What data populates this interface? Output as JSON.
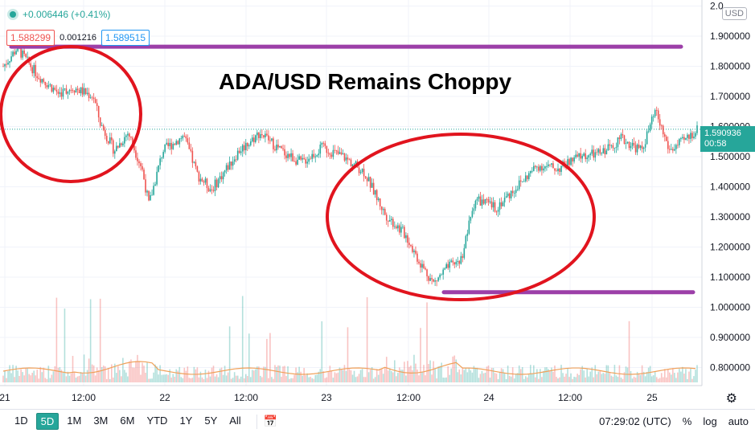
{
  "header": {
    "change": "+0.006446 (+0.41%)",
    "bid": "1.588299",
    "spread": "0.001216",
    "ask": "1.589515",
    "currency": "USD"
  },
  "title": "ADA/USD Remains Choppy",
  "last_price": {
    "value": "1.590936",
    "countdown": "00:58"
  },
  "toolbar": {
    "timeframes": [
      "1D",
      "5D",
      "1M",
      "3M",
      "6M",
      "YTD",
      "1Y",
      "5Y",
      "All"
    ],
    "active_timeframe": "5D",
    "time": "07:29:02 (UTC)",
    "percent": "%",
    "log": "log",
    "auto": "auto"
  },
  "colors": {
    "up": "#26a69a",
    "down": "#ef5350",
    "line": "#9c3fa8",
    "circle": "#e1141e",
    "volume_ma": "#f0a15a"
  },
  "chart_data": {
    "type": "candlestick",
    "title": "ADA/USD Remains Choppy",
    "y_axis": {
      "ticks": [
        "2.0",
        "1.900000",
        "1.800000",
        "1.700000",
        "1.600000",
        "1.500000",
        "1.400000",
        "1.300000",
        "1.200000",
        "1.100000",
        "1.000000",
        "0.900000",
        "0.800000"
      ],
      "range": [
        0.74,
        2.02
      ]
    },
    "x_axis": {
      "labels": [
        "21",
        "12:00",
        "22",
        "12:00",
        "23",
        "12:00",
        "24",
        "12:00",
        "25"
      ]
    },
    "price_path": [
      [
        0,
        1.8
      ],
      [
        0.02,
        1.86
      ],
      [
        0.05,
        1.77
      ],
      [
        0.08,
        1.71
      ],
      [
        0.1,
        1.73
      ],
      [
        0.13,
        1.7
      ],
      [
        0.14,
        1.61
      ],
      [
        0.16,
        1.52
      ],
      [
        0.18,
        1.58
      ],
      [
        0.2,
        1.46
      ],
      [
        0.21,
        1.34
      ],
      [
        0.23,
        1.52
      ],
      [
        0.26,
        1.57
      ],
      [
        0.28,
        1.44
      ],
      [
        0.3,
        1.39
      ],
      [
        0.34,
        1.52
      ],
      [
        0.37,
        1.58
      ],
      [
        0.4,
        1.52
      ],
      [
        0.43,
        1.48
      ],
      [
        0.46,
        1.53
      ],
      [
        0.49,
        1.5
      ],
      [
        0.52,
        1.45
      ],
      [
        0.55,
        1.31
      ],
      [
        0.58,
        1.24
      ],
      [
        0.6,
        1.15
      ],
      [
        0.62,
        1.08
      ],
      [
        0.64,
        1.13
      ],
      [
        0.66,
        1.16
      ],
      [
        0.68,
        1.36
      ],
      [
        0.71,
        1.33
      ],
      [
        0.74,
        1.4
      ],
      [
        0.77,
        1.47
      ],
      [
        0.8,
        1.46
      ],
      [
        0.83,
        1.5
      ],
      [
        0.86,
        1.51
      ],
      [
        0.89,
        1.56
      ],
      [
        0.92,
        1.52
      ],
      [
        0.94,
        1.65
      ],
      [
        0.96,
        1.52
      ],
      [
        0.98,
        1.55
      ],
      [
        1.0,
        1.59
      ]
    ],
    "support_level": 1.05,
    "resistance_level": 1.865,
    "volume_ma_level": 0.77
  }
}
